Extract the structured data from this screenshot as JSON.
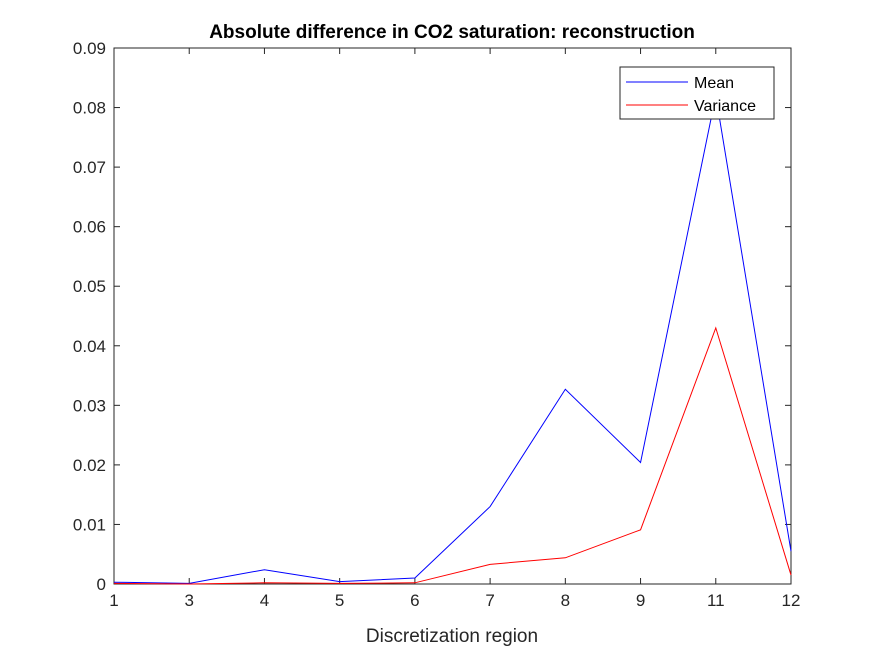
{
  "chart_data": {
    "type": "line",
    "title": "Absolute difference in CO2 saturation: reconstruction",
    "xlabel": "Discretization region",
    "ylabel": "",
    "x_tick_labels": [
      "1",
      "3",
      "4",
      "5",
      "6",
      "7",
      "8",
      "9",
      "11",
      "12"
    ],
    "y_ticks": [
      0,
      0.01,
      0.02,
      0.03,
      0.04,
      0.05,
      0.06,
      0.07,
      0.08,
      0.09
    ],
    "y_tick_labels": [
      "0",
      "0.01",
      "0.02",
      "0.03",
      "0.04",
      "0.05",
      "0.06",
      "0.07",
      "0.08",
      "0.09"
    ],
    "ylim": [
      0,
      0.09
    ],
    "grid": false,
    "legend_position": "top-right",
    "series": [
      {
        "name": "Mean",
        "color": "#0000ff",
        "values": [
          0.0003,
          0.0001,
          0.0024,
          0.0004,
          0.001,
          0.013,
          0.0327,
          0.0204,
          0.082,
          0.0055
        ]
      },
      {
        "name": "Variance",
        "color": "#ff0000",
        "values": [
          0.0001,
          0.0,
          0.0002,
          0.0001,
          0.0002,
          0.0033,
          0.0044,
          0.0091,
          0.043,
          0.0015
        ]
      }
    ]
  }
}
